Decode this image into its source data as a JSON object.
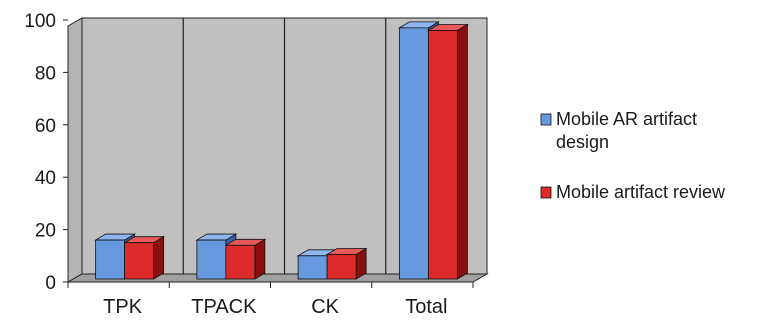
{
  "chart_data": {
    "type": "bar",
    "style": "3d-clustered-column",
    "categories": [
      "TPK",
      "TPACK",
      "CK",
      "Total"
    ],
    "series": [
      {
        "name": "Mobile AR artifact design",
        "name_lines": [
          "Mobile AR artifact",
          "design"
        ],
        "color": "#6699dd",
        "side_color": "#3a5fa8",
        "top_color": "#8fb6ee",
        "values": [
          16,
          16,
          10,
          97
        ]
      },
      {
        "name": "Mobile artifact review",
        "name_lines": [
          "Mobile artifact review"
        ],
        "color": "#dd2a2a",
        "side_color": "#8a1010",
        "top_color": "#e85a5a",
        "values": [
          15,
          14,
          10.5,
          96
        ]
      }
    ],
    "yticks": [
      0,
      20,
      40,
      60,
      80,
      100
    ],
    "ylim": [
      0,
      100
    ],
    "grid": false,
    "wall_color": "#c0c0c0",
    "floor_color": "#a0a0a0",
    "legend_position": "right",
    "title": "",
    "xlabel": "",
    "ylabel": ""
  }
}
